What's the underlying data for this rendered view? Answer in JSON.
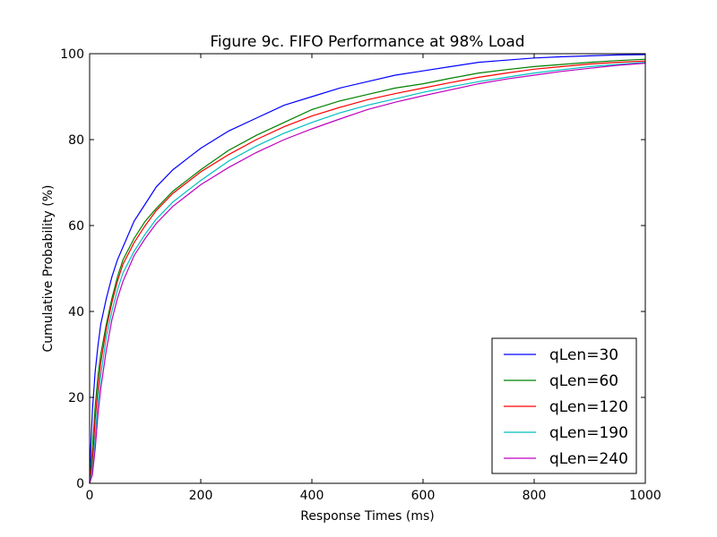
{
  "chart_data": {
    "type": "line",
    "title": "Figure 9c. FIFO Performance at 98% Load",
    "xlabel": "Response Times (ms)",
    "ylabel": "Cumulative Probability (%)",
    "xlim": [
      0,
      1000
    ],
    "ylim": [
      0,
      100
    ],
    "xticks": [
      "0",
      "200",
      "400",
      "600",
      "800",
      "1000"
    ],
    "yticks": [
      "0",
      "20",
      "40",
      "60",
      "80",
      "100"
    ],
    "grid": false,
    "legend_position": "bottom-right",
    "series": [
      {
        "name": "qLen=30",
        "color": "#0000ff",
        "x": [
          0,
          2,
          5,
          10,
          15,
          20,
          30,
          40,
          50,
          60,
          80,
          100,
          120,
          150,
          180,
          200,
          250,
          300,
          350,
          400,
          450,
          500,
          550,
          600,
          650,
          700,
          750,
          800,
          850,
          900,
          950,
          1000
        ],
        "y": [
          0,
          8,
          17,
          26,
          32,
          37,
          43,
          48,
          52,
          55,
          61,
          65,
          69,
          73,
          76,
          78,
          82,
          85,
          88,
          90,
          92,
          93.5,
          95,
          96,
          97,
          98,
          98.5,
          99,
          99.3,
          99.5,
          99.7,
          99.8
        ]
      },
      {
        "name": "qLen=60",
        "color": "#008000",
        "x": [
          0,
          5,
          10,
          15,
          20,
          30,
          40,
          50,
          60,
          80,
          100,
          120,
          150,
          180,
          200,
          250,
          300,
          350,
          400,
          450,
          500,
          550,
          600,
          650,
          700,
          750,
          800,
          850,
          900,
          950,
          1000
        ],
        "y": [
          0,
          8,
          18,
          25,
          30,
          37,
          43,
          48,
          52,
          57,
          61,
          64,
          68,
          71,
          73,
          77.5,
          81,
          84,
          87,
          89,
          90.5,
          92,
          93,
          94.3,
          95.5,
          96.3,
          97,
          97.5,
          98,
          98.4,
          98.7
        ]
      },
      {
        "name": "qLen=120",
        "color": "#ff0000",
        "x": [
          0,
          5,
          10,
          15,
          20,
          30,
          40,
          50,
          60,
          80,
          100,
          120,
          150,
          180,
          200,
          250,
          300,
          350,
          400,
          450,
          500,
          550,
          600,
          650,
          700,
          750,
          800,
          850,
          900,
          950,
          1000
        ],
        "y": [
          0,
          5,
          15,
          22,
          28,
          36,
          42,
          47,
          51,
          56,
          60,
          63.5,
          67.5,
          70.5,
          72.5,
          76.5,
          80,
          83,
          85.5,
          87.5,
          89.3,
          90.7,
          92,
          93.3,
          94.5,
          95.5,
          96.4,
          97,
          97.6,
          98,
          98.3
        ]
      },
      {
        "name": "qLen=190",
        "color": "#00bfbf",
        "x": [
          0,
          5,
          10,
          15,
          20,
          30,
          40,
          50,
          60,
          80,
          100,
          120,
          150,
          180,
          200,
          250,
          300,
          350,
          400,
          450,
          500,
          550,
          600,
          650,
          700,
          750,
          800,
          850,
          900,
          950,
          1000
        ],
        "y": [
          0,
          3,
          11,
          19,
          25,
          34,
          40,
          45,
          49,
          54,
          58,
          61.5,
          65.5,
          68.5,
          70.5,
          75,
          78.5,
          81.5,
          84,
          86.2,
          88,
          89.5,
          91,
          92.3,
          93.5,
          94.5,
          95.5,
          96.3,
          97,
          97.5,
          98
        ]
      },
      {
        "name": "qLen=240",
        "color": "#bf00bf",
        "x": [
          0,
          5,
          10,
          15,
          20,
          30,
          40,
          50,
          60,
          80,
          100,
          120,
          150,
          180,
          200,
          250,
          300,
          350,
          400,
          450,
          500,
          550,
          600,
          650,
          700,
          750,
          800,
          850,
          900,
          950,
          1000
        ],
        "y": [
          0,
          2,
          8,
          16,
          22,
          31,
          38,
          43,
          47,
          53,
          57,
          60.5,
          64.5,
          67.5,
          69.5,
          73.5,
          77,
          80,
          82.5,
          84.8,
          87,
          88.7,
          90.2,
          91.6,
          93,
          94.1,
          95,
          95.9,
          96.6,
          97.3,
          97.8
        ]
      }
    ]
  }
}
